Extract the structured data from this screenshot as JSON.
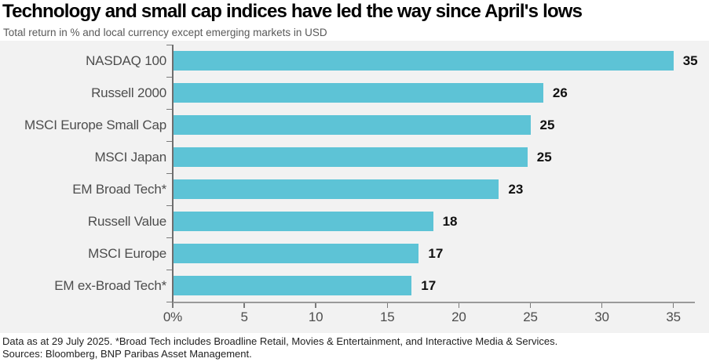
{
  "chart_data": {
    "type": "bar",
    "orientation": "horizontal",
    "title": "Technology and small cap indices have led the way since April's lows",
    "subtitle": "Total return in % and local currency except emerging markets in USD",
    "categories": [
      "NASDAQ 100",
      "Russell 2000",
      "MSCI Europe Small Cap",
      "MSCI Japan",
      "EM Broad Tech*",
      "Russell Value",
      "MSCI Europe",
      "EM ex-Broad Tech*"
    ],
    "values": [
      35,
      26,
      25,
      25,
      23,
      18,
      17,
      17
    ],
    "values_precise": [
      35.0,
      25.9,
      25.0,
      24.8,
      22.8,
      18.2,
      17.2,
      16.7
    ],
    "value_labels": [
      "35",
      "26",
      "25",
      "25",
      "23",
      "18",
      "17",
      "17"
    ],
    "xlabel": "",
    "ylabel": "",
    "xlim": [
      0,
      36.5
    ],
    "xticks": [
      0,
      5,
      10,
      15,
      20,
      25,
      30,
      35
    ],
    "xtick_labels": [
      "0%",
      "5",
      "10",
      "15",
      "20",
      "25",
      "30",
      "35"
    ],
    "grid": false,
    "legend": false,
    "colors": {
      "bar": "#5dc3d6",
      "plot_background": "#f2f2f2",
      "page_background": "#ffffff",
      "category_label": "#4d4d4d",
      "value_label": "#111111",
      "tick_label": "#4d4d4d",
      "y_axis_line": "#6e6e6e",
      "x_axis_line": "#9a9a9a",
      "tick_mark": "#7a7a7a"
    }
  },
  "footer": {
    "line1": "Data as at 29 July 2025. *Broad Tech includes Broadline Retail, Movies & Entertainment, and Interactive Media & Services.",
    "line2": "Sources: Bloomberg, BNP Paribas Asset Management."
  }
}
